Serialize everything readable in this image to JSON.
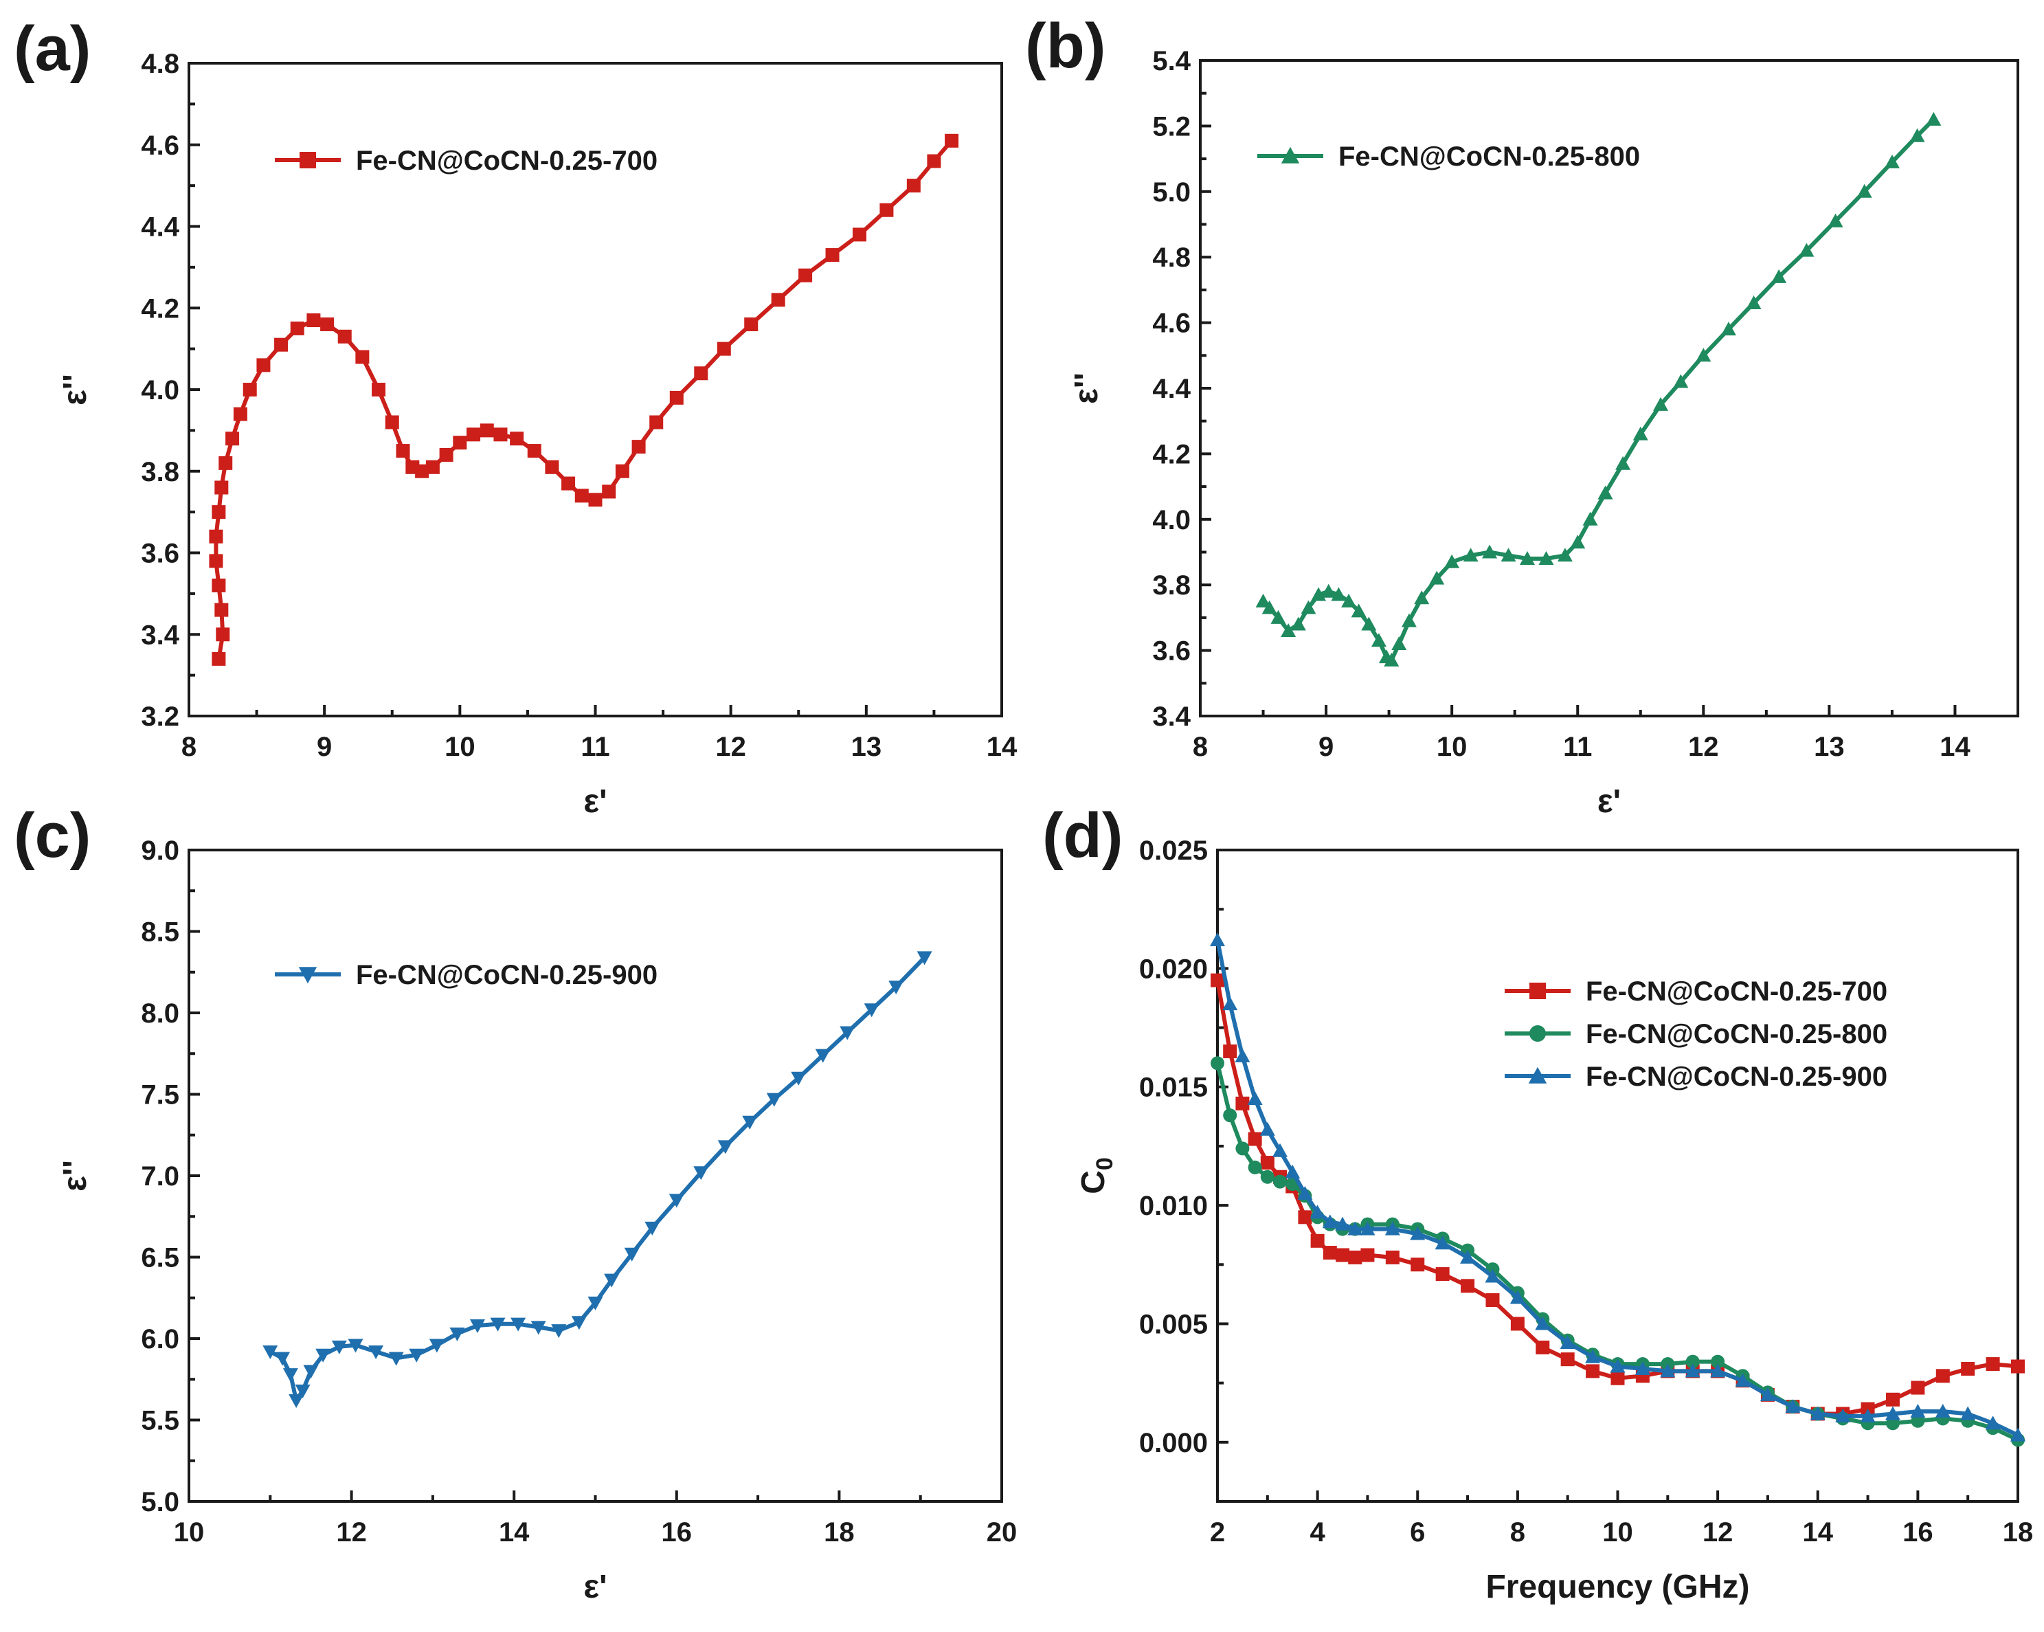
{
  "chart_data": [
    {
      "id": "a",
      "panel_label": "(a)",
      "type": "line",
      "xlabel": "ε'",
      "ylabel": "ε''",
      "xlim": [
        8,
        14
      ],
      "ylim": [
        3.2,
        4.8
      ],
      "xticks": [
        "8",
        "9",
        "10",
        "11",
        "12",
        "13",
        "14"
      ],
      "yticks": [
        "3.2",
        "3.4",
        "3.6",
        "3.8",
        "4.0",
        "4.2",
        "4.4",
        "4.6",
        "4.8"
      ],
      "legend_position": "top-left",
      "series": [
        {
          "name": "Fe-CN@CoCN-0.25-700",
          "color": "#cc1f1a",
          "marker": "square",
          "x": [
            8.22,
            8.25,
            8.24,
            8.22,
            8.2,
            8.2,
            8.22,
            8.24,
            8.27,
            8.32,
            8.38,
            8.45,
            8.55,
            8.68,
            8.8,
            8.92,
            9.02,
            9.15,
            9.28,
            9.4,
            9.5,
            9.58,
            9.65,
            9.72,
            9.8,
            9.9,
            10.0,
            10.1,
            10.2,
            10.3,
            10.42,
            10.55,
            10.68,
            10.8,
            10.9,
            11.0,
            11.1,
            11.2,
            11.32,
            11.45,
            11.6,
            11.78,
            11.95,
            12.15,
            12.35,
            12.55,
            12.75,
            12.95,
            13.15,
            13.35,
            13.5,
            13.63
          ],
          "y": [
            3.34,
            3.4,
            3.46,
            3.52,
            3.58,
            3.64,
            3.7,
            3.76,
            3.82,
            3.88,
            3.94,
            4.0,
            4.06,
            4.11,
            4.15,
            4.17,
            4.16,
            4.13,
            4.08,
            4.0,
            3.92,
            3.85,
            3.81,
            3.8,
            3.81,
            3.84,
            3.87,
            3.89,
            3.9,
            3.89,
            3.88,
            3.85,
            3.81,
            3.77,
            3.74,
            3.73,
            3.75,
            3.8,
            3.86,
            3.92,
            3.98,
            4.04,
            4.1,
            4.16,
            4.22,
            4.28,
            4.33,
            4.38,
            4.44,
            4.5,
            4.56,
            4.61
          ]
        }
      ]
    },
    {
      "id": "b",
      "panel_label": "(b)",
      "type": "line",
      "xlabel": "ε'",
      "ylabel": "ε''",
      "xlim": [
        8,
        14.5
      ],
      "ylim": [
        3.4,
        5.4
      ],
      "xticks": [
        "8",
        "9",
        "10",
        "11",
        "12",
        "13",
        "14"
      ],
      "yticks": [
        "3.4",
        "3.6",
        "3.8",
        "4.0",
        "4.2",
        "4.4",
        "4.6",
        "4.8",
        "5.0",
        "5.2",
        "5.4"
      ],
      "legend_position": "top-left",
      "series": [
        {
          "name": "Fe-CN@CoCN-0.25-800",
          "color": "#1e8a5e",
          "marker": "triangle-up",
          "x": [
            8.5,
            8.55,
            8.62,
            8.7,
            8.78,
            8.86,
            8.94,
            9.02,
            9.1,
            9.18,
            9.26,
            9.34,
            9.42,
            9.48,
            9.52,
            9.58,
            9.66,
            9.76,
            9.88,
            10.0,
            10.15,
            10.3,
            10.45,
            10.6,
            10.75,
            10.9,
            11.0,
            11.1,
            11.22,
            11.36,
            11.5,
            11.66,
            11.82,
            12.0,
            12.2,
            12.4,
            12.6,
            12.82,
            13.05,
            13.28,
            13.5,
            13.7,
            13.83
          ],
          "y": [
            3.75,
            3.73,
            3.7,
            3.66,
            3.68,
            3.73,
            3.77,
            3.78,
            3.77,
            3.75,
            3.72,
            3.68,
            3.63,
            3.58,
            3.57,
            3.62,
            3.69,
            3.76,
            3.82,
            3.87,
            3.89,
            3.9,
            3.89,
            3.88,
            3.88,
            3.89,
            3.93,
            4.0,
            4.08,
            4.17,
            4.26,
            4.35,
            4.42,
            4.5,
            4.58,
            4.66,
            4.74,
            4.82,
            4.91,
            5.0,
            5.09,
            5.17,
            5.22
          ]
        }
      ]
    },
    {
      "id": "c",
      "panel_label": "(c)",
      "type": "line",
      "xlabel": "ε'",
      "ylabel": "ε''",
      "xlim": [
        10,
        20
      ],
      "ylim": [
        5.0,
        9.0
      ],
      "xticks": [
        "10",
        "12",
        "14",
        "16",
        "18",
        "20"
      ],
      "yticks": [
        "5.0",
        "5.5",
        "6.0",
        "6.5",
        "7.0",
        "7.5",
        "8.0",
        "8.5",
        "9.0"
      ],
      "legend_position": "top-left",
      "series": [
        {
          "name": "Fe-CN@CoCN-0.25-900",
          "color": "#1f6fae",
          "marker": "triangle-down",
          "x": [
            11.0,
            11.15,
            11.25,
            11.32,
            11.4,
            11.5,
            11.65,
            11.85,
            12.05,
            12.3,
            12.55,
            12.8,
            13.05,
            13.3,
            13.55,
            13.8,
            14.05,
            14.3,
            14.55,
            14.8,
            15.0,
            15.2,
            15.45,
            15.7,
            16.0,
            16.3,
            16.6,
            16.9,
            17.2,
            17.5,
            17.8,
            18.1,
            18.4,
            18.7,
            19.05
          ],
          "y": [
            5.92,
            5.88,
            5.78,
            5.62,
            5.68,
            5.8,
            5.9,
            5.95,
            5.96,
            5.92,
            5.88,
            5.9,
            5.96,
            6.03,
            6.08,
            6.09,
            6.09,
            6.07,
            6.05,
            6.1,
            6.22,
            6.36,
            6.52,
            6.68,
            6.85,
            7.02,
            7.18,
            7.33,
            7.47,
            7.6,
            7.74,
            7.88,
            8.02,
            8.16,
            8.34
          ]
        }
      ]
    },
    {
      "id": "d",
      "panel_label": "(d)",
      "type": "line",
      "xlabel": "Frequency (GHz)",
      "ylabel": "C",
      "ylabel_subscript": "0",
      "xlim": [
        2,
        18
      ],
      "ylim": [
        -0.0025,
        0.025
      ],
      "xticks": [
        "2",
        "4",
        "6",
        "8",
        "10",
        "12",
        "14",
        "16",
        "18"
      ],
      "yticks": [
        "0.000",
        "0.005",
        "0.010",
        "0.015",
        "0.020",
        "0.025"
      ],
      "ytick_values": [
        0,
        0.005,
        0.01,
        0.015,
        0.02,
        0.025
      ],
      "legend_position": "top-right",
      "series": [
        {
          "name": "Fe-CN@CoCN-0.25-700",
          "color": "#cc1f1a",
          "marker": "square",
          "x": [
            2,
            2.25,
            2.5,
            2.75,
            3,
            3.25,
            3.5,
            3.75,
            4,
            4.25,
            4.5,
            4.75,
            5,
            5.5,
            6,
            6.5,
            7,
            7.5,
            8,
            8.5,
            9,
            9.5,
            10,
            10.5,
            11,
            11.5,
            12,
            12.5,
            13,
            13.5,
            14,
            14.5,
            15,
            15.5,
            16,
            16.5,
            17,
            17.5,
            18
          ],
          "y": [
            0.0195,
            0.0165,
            0.0143,
            0.0128,
            0.0118,
            0.0112,
            0.0108,
            0.0095,
            0.0085,
            0.008,
            0.0079,
            0.0078,
            0.0079,
            0.0078,
            0.0075,
            0.0071,
            0.0066,
            0.006,
            0.005,
            0.004,
            0.0035,
            0.003,
            0.0027,
            0.0028,
            0.003,
            0.003,
            0.003,
            0.0026,
            0.002,
            0.0015,
            0.0012,
            0.0012,
            0.0014,
            0.0018,
            0.0023,
            0.0028,
            0.0031,
            0.0033,
            0.0032
          ]
        },
        {
          "name": "Fe-CN@CoCN-0.25-800",
          "color": "#1e8a5e",
          "marker": "circle",
          "x": [
            2,
            2.25,
            2.5,
            2.75,
            3,
            3.25,
            3.5,
            3.75,
            4,
            4.25,
            4.5,
            4.75,
            5,
            5.5,
            6,
            6.5,
            7,
            7.5,
            8,
            8.5,
            9,
            9.5,
            10,
            10.5,
            11,
            11.5,
            12,
            12.5,
            13,
            13.5,
            14,
            14.5,
            15,
            15.5,
            16,
            16.5,
            17,
            17.5,
            18
          ],
          "y": [
            0.016,
            0.0138,
            0.0124,
            0.0116,
            0.0112,
            0.011,
            0.0109,
            0.0104,
            0.0095,
            0.0092,
            0.009,
            0.009,
            0.0092,
            0.0092,
            0.009,
            0.0086,
            0.0081,
            0.0073,
            0.0063,
            0.0052,
            0.0043,
            0.0037,
            0.0033,
            0.0033,
            0.0033,
            0.0034,
            0.0034,
            0.0028,
            0.0021,
            0.0015,
            0.0012,
            0.001,
            0.0008,
            0.0008,
            0.0009,
            0.001,
            0.0009,
            0.0006,
            0.0001
          ]
        },
        {
          "name": "Fe-CN@CoCN-0.25-900",
          "color": "#1f6fae",
          "marker": "triangle-up",
          "x": [
            2,
            2.25,
            2.5,
            2.75,
            3,
            3.25,
            3.5,
            3.75,
            4,
            4.25,
            4.5,
            4.75,
            5,
            5.5,
            6,
            6.5,
            7,
            7.5,
            8,
            8.5,
            9,
            9.5,
            10,
            10.5,
            11,
            11.5,
            12,
            12.5,
            13,
            13.5,
            14,
            14.5,
            15,
            15.5,
            16,
            16.5,
            17,
            17.5,
            18
          ],
          "y": [
            0.0212,
            0.0185,
            0.0163,
            0.0145,
            0.0132,
            0.0123,
            0.0114,
            0.0105,
            0.0097,
            0.0093,
            0.0092,
            0.009,
            0.009,
            0.009,
            0.0088,
            0.0084,
            0.0078,
            0.007,
            0.0061,
            0.005,
            0.0042,
            0.0036,
            0.0032,
            0.0031,
            0.003,
            0.003,
            0.003,
            0.0026,
            0.002,
            0.0015,
            0.0012,
            0.0011,
            0.0011,
            0.0012,
            0.0013,
            0.0013,
            0.0012,
            0.0008,
            0.0003
          ]
        }
      ]
    }
  ]
}
